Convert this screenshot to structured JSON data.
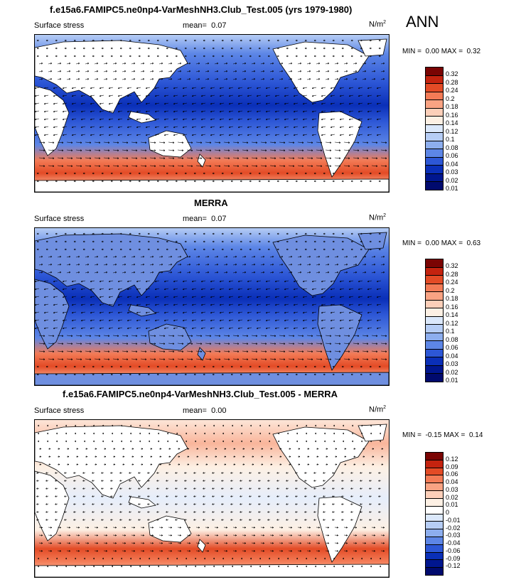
{
  "season": "ANN",
  "palette12": [
    "#7a0403",
    "#c4230f",
    "#e34b26",
    "#f37b56",
    "#f9a383",
    "#fccfb9",
    "#fdf0e4",
    "#dbe8fb",
    "#b6cdf5",
    "#8daeee",
    "#5d86e6",
    "#2d57d6",
    "#0a2fb8",
    "#00168f",
    "#000a6e"
  ],
  "diffPalette": [
    "#7a0403",
    "#c4230f",
    "#e34b26",
    "#f37b56",
    "#f9a383",
    "#fccfb9",
    "#fdf0e4",
    "#ffffff",
    "#dbe8fb",
    "#b6cdf5",
    "#8daeee",
    "#5d86e6",
    "#2d57d6",
    "#0a2fb8",
    "#00168f",
    "#000a6e"
  ],
  "panels": [
    {
      "title": "f.e15a6.FAMIPC5.ne0np4-VarMeshNH3.Club_Test.005 (yrs 1979-1980)",
      "variable": "Surface stress",
      "mean_label": "mean=",
      "mean_value": "0.07",
      "units": "N/m",
      "units_exp": "2",
      "min_label": "MIN =",
      "min_value": "0.00",
      "max_label": "MAX =",
      "max_value": "0.32",
      "levels": [
        "0.32",
        "0.28",
        "0.24",
        "0.2",
        "0.18",
        "0.16",
        "0.14",
        "0.12",
        "0.1",
        "0.08",
        "0.06",
        "0.04",
        "0.03",
        "0.02",
        "0.01"
      ],
      "kind": "field"
    },
    {
      "title": "MERRA",
      "variable": "Surface stress",
      "mean_label": "mean=",
      "mean_value": "0.07",
      "units": "N/m",
      "units_exp": "2",
      "min_label": "MIN =",
      "min_value": "0.00",
      "max_label": "MAX =",
      "max_value": "0.63",
      "levels": [
        "0.32",
        "0.28",
        "0.24",
        "0.2",
        "0.18",
        "0.16",
        "0.14",
        "0.12",
        "0.1",
        "0.08",
        "0.06",
        "0.04",
        "0.03",
        "0.02",
        "0.01"
      ],
      "kind": "field"
    },
    {
      "title": "f.e15a6.FAMIPC5.ne0np4-VarMeshNH3.Club_Test.005 - MERRA",
      "variable": "Surface stress",
      "mean_label": "mean=",
      "mean_value": "0.00",
      "units": "N/m",
      "units_exp": "2",
      "min_label": "MIN =",
      "min_value": "-0.15",
      "max_label": "MAX =",
      "max_value": "0.14",
      "levels": [
        "0.12",
        "0.09",
        "0.06",
        "0.04",
        "0.03",
        "0.02",
        "0.01",
        "0",
        "-0.01",
        "-0.02",
        "-0.03",
        "-0.04",
        "-0.06",
        "-0.09",
        "-0.12"
      ],
      "kind": "diff"
    }
  ]
}
